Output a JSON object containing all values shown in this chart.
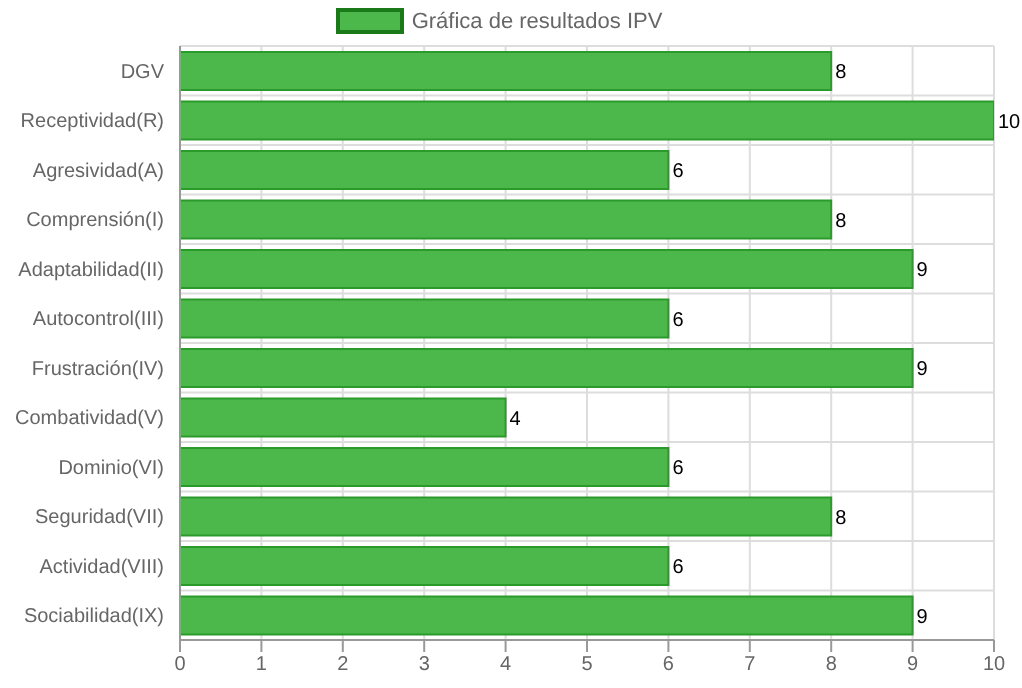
{
  "chart_data": {
    "type": "bar",
    "orientation": "horizontal",
    "categories": [
      "DGV",
      "Receptividad(R)",
      "Agresividad(A)",
      "Comprensión(I)",
      "Adaptabilidad(II)",
      "Autocontrol(III)",
      "Frustración(IV)",
      "Combatividad(V)",
      "Dominio(VI)",
      "Seguridad(VII)",
      "Actividad(VIII)",
      "Sociabilidad(IX)"
    ],
    "series": [
      {
        "name": "Gráfica de resultados IPV",
        "color": "#4cb84c",
        "values": [
          8,
          10,
          6,
          8,
          9,
          6,
          9,
          4,
          6,
          8,
          6,
          9
        ]
      }
    ],
    "xlim": [
      0,
      10
    ],
    "xticks": [
      0,
      1,
      2,
      3,
      4,
      5,
      6,
      7,
      8,
      9,
      10
    ],
    "grid": true,
    "legend": "top",
    "data_labels": true
  }
}
